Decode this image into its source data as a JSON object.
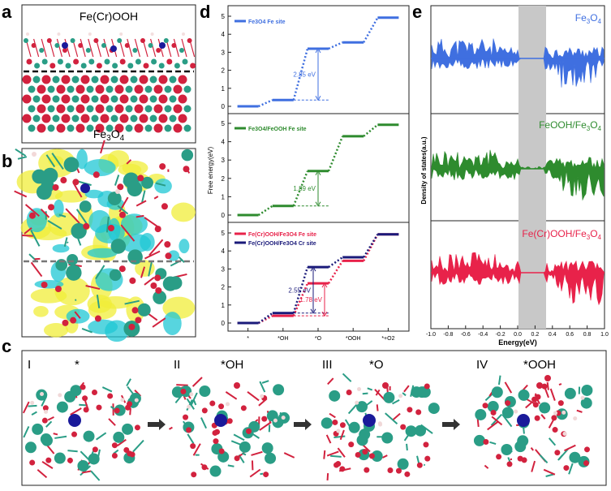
{
  "panels": {
    "a": {
      "letter": "a",
      "top_label": "Fe(Cr)OOH",
      "bottom_label_base": "Fe",
      "bottom_label_sub": "3",
      "bottom_label_tail": "O",
      "bottom_label_sub2": "4"
    },
    "b": {
      "letter": "b"
    },
    "c": {
      "letter": "c",
      "steps": [
        {
          "roman": "I",
          "state": "*"
        },
        {
          "roman": "II",
          "state": "*OH"
        },
        {
          "roman": "III",
          "state": "*O"
        },
        {
          "roman": "IV",
          "state": "*OOH"
        }
      ]
    },
    "d": {
      "letter": "d",
      "ylabel": "Free energy(eV)"
    },
    "e": {
      "letter": "e",
      "ylabel": "Density of states(a.u.)",
      "xlabel": "Energy(eV)"
    }
  },
  "colors": {
    "blue": "#3f6fe0",
    "green": "#2e8b2e",
    "red": "#e8224a",
    "navy": "#1a1a7a",
    "grey_band": "#c8c8c8",
    "teal_atom": "#2a9d86",
    "red_atom": "#d2223e",
    "cr_atom": "#1a1a9a"
  },
  "chart_data": [
    {
      "type": "line",
      "panel": "d-top",
      "x": [
        "*",
        "*OH",
        "*O",
        "*OOH",
        "*+O2"
      ],
      "series": [
        {
          "name": "Fe3O4 Fe site",
          "values": [
            0.0,
            0.35,
            3.2,
            3.55,
            4.92
          ]
        }
      ],
      "annotations": [
        "2.85 eV"
      ],
      "ylim": [
        0,
        5
      ],
      "yticks": [
        0,
        1,
        2,
        3,
        4,
        5
      ]
    },
    {
      "type": "line",
      "panel": "d-middle",
      "x": [
        "*",
        "*OH",
        "*O",
        "*OOH",
        "*+O2"
      ],
      "series": [
        {
          "name": "Fe3O4/FeOOH Fe site",
          "values": [
            0.0,
            0.5,
            2.4,
            4.3,
            4.92
          ]
        }
      ],
      "annotations": [
        "1.89 eV"
      ],
      "ylim": [
        0,
        5
      ],
      "yticks": [
        0,
        1,
        2,
        3,
        4,
        5
      ]
    },
    {
      "type": "line",
      "panel": "d-bottom",
      "x": [
        "*",
        "*OH",
        "*O",
        "*OOH",
        "*+O2"
      ],
      "xticklabels": [
        "*",
        "*OH",
        "*O",
        "*OOH",
        "*+O2"
      ],
      "series": [
        {
          "name": "Fe(Cr)OOH/Fe3O4 Fe site",
          "values": [
            0.0,
            0.4,
            2.2,
            3.45,
            4.92
          ]
        },
        {
          "name": "Fe(Cr)OOH/Fe3O4 Cr site",
          "values": [
            0.0,
            0.55,
            3.1,
            3.65,
            4.92
          ]
        }
      ],
      "annotations": [
        "2.55 eV",
        "1.78 eV"
      ],
      "ylim": [
        0,
        5
      ],
      "yticks": [
        0,
        1,
        2,
        3,
        4,
        5
      ]
    },
    {
      "type": "area",
      "panel": "e",
      "xlabel": "Energy(eV)",
      "ylabel": "Density of states(a.u.)",
      "xlim": [
        -1.0,
        1.0
      ],
      "xticks": [
        -1.0,
        -0.8,
        -0.6,
        -0.4,
        -0.2,
        0.0,
        0.2,
        0.4,
        0.6,
        0.8,
        1.0
      ],
      "xticklabels": [
        "-1.0",
        "-0.8",
        "-0.6",
        "-0.4",
        "-0.2",
        "0.0",
        "0.2",
        "0.4",
        "0.6",
        "0.8",
        "1.0"
      ],
      "highlight_band": [
        0.0,
        0.32
      ],
      "series": [
        {
          "name": "Fe3O4",
          "label_base": "Fe",
          "label_sub": "3",
          "label_tail": "O",
          "label_sub2": "4"
        },
        {
          "name": "FeOOH/Fe3O4",
          "label_base": "FeOOH/Fe",
          "label_sub": "3",
          "label_tail": "O",
          "label_sub2": "4"
        },
        {
          "name": "Fe(Cr)OOH/Fe3O4",
          "label_base": "Fe(Cr)OOH/Fe",
          "label_sub": "3",
          "label_tail": "O",
          "label_sub2": "4"
        }
      ]
    }
  ]
}
